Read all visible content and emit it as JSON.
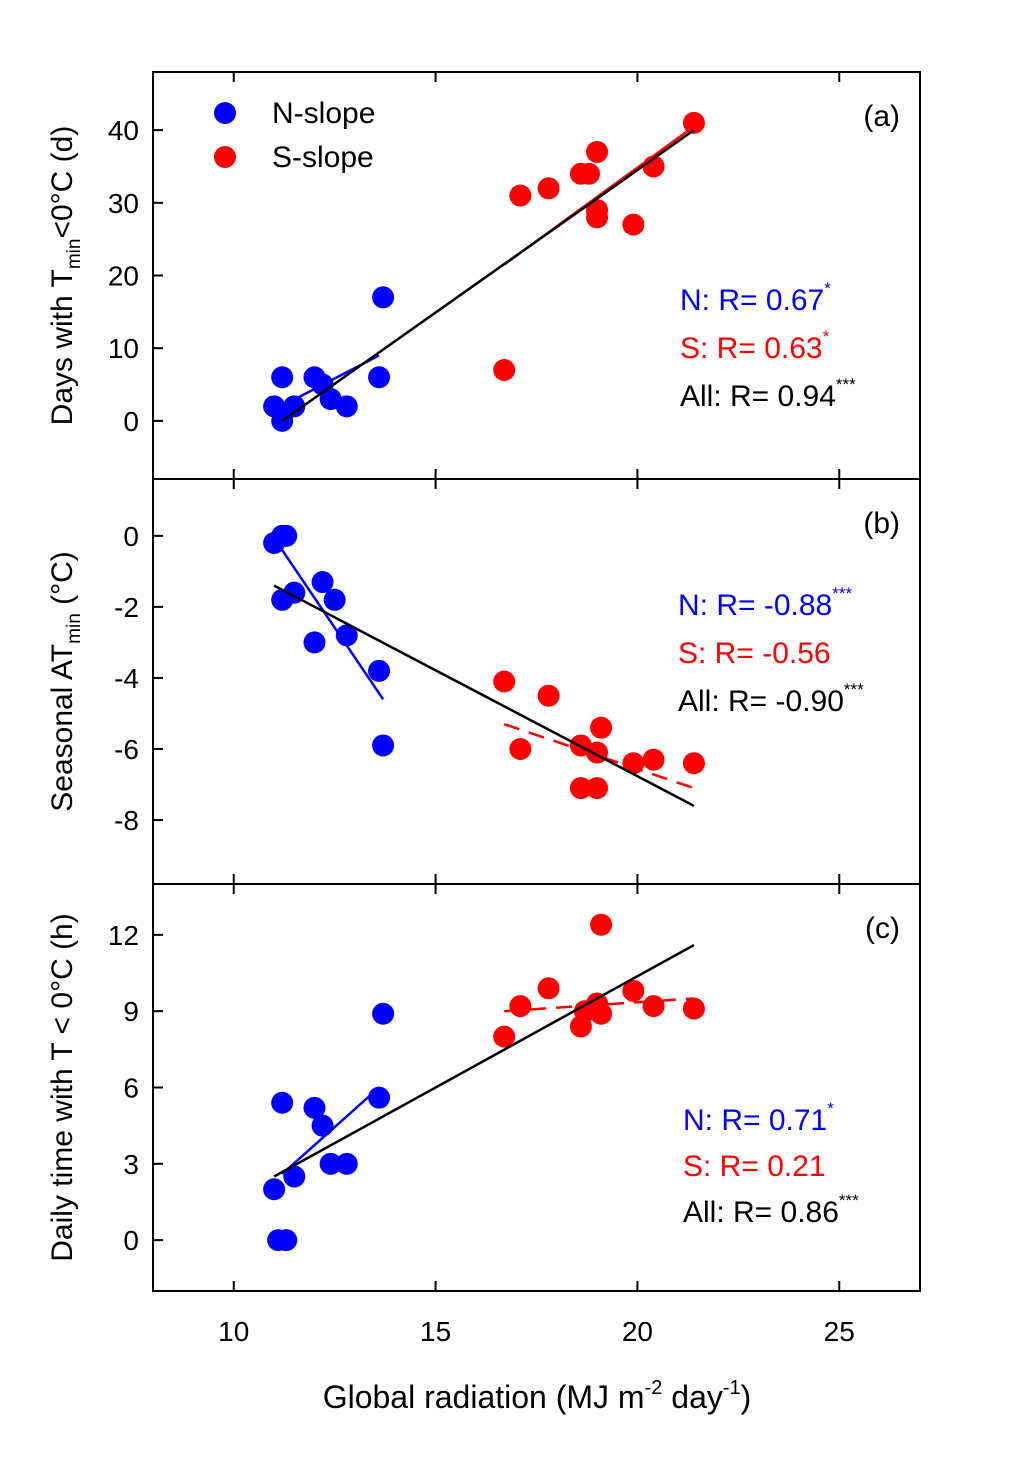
{
  "chart_data": {
    "type": "scatter",
    "xlabel": {
      "main": "Global radiation (MJ m",
      "sup1": "-2",
      "mid": " day",
      "sup2": "-1",
      "end": ")"
    },
    "xlim": [
      8,
      27
    ],
    "xticks": [
      10,
      15,
      20,
      25
    ],
    "legend": {
      "position": "top-left",
      "entries": [
        {
          "name": "N-slope",
          "color": "#0000ff"
        },
        {
          "name": "S-slope",
          "color": "#ff0000"
        }
      ]
    },
    "colors": {
      "n": "#0000ff",
      "s": "#ff0000",
      "all": "#000000"
    },
    "panels": [
      {
        "id": "a",
        "label": "(a)",
        "ylabel": {
          "pre": "Days with T",
          "sub": "min",
          "post": "<0°C (d)"
        },
        "ylim": [
          -8,
          48
        ],
        "yticks": [
          0,
          10,
          20,
          30,
          40
        ],
        "n_points": [
          [
            11.0,
            2
          ],
          [
            11.2,
            0
          ],
          [
            11.2,
            6
          ],
          [
            11.5,
            2
          ],
          [
            12.0,
            6
          ],
          [
            12.2,
            5
          ],
          [
            12.4,
            3
          ],
          [
            12.8,
            2
          ],
          [
            13.6,
            6
          ],
          [
            13.7,
            17
          ]
        ],
        "s_points": [
          [
            16.7,
            7
          ],
          [
            17.1,
            31
          ],
          [
            17.8,
            32
          ],
          [
            18.6,
            34
          ],
          [
            18.8,
            34
          ],
          [
            19.0,
            29
          ],
          [
            19.0,
            28
          ],
          [
            19.0,
            37
          ],
          [
            19.9,
            27
          ],
          [
            20.4,
            35
          ],
          [
            21.4,
            41
          ]
        ],
        "n_fit": [
          [
            11.0,
            1.5
          ],
          [
            13.6,
            9.0
          ]
        ],
        "s_fit": [
          [
            16.7,
            21.5
          ],
          [
            21.4,
            40.5
          ]
        ],
        "all_fit": [
          [
            11.2,
            0
          ],
          [
            21.4,
            40
          ]
        ],
        "s_fit_dashed": false,
        "stats": [
          {
            "text": "N: R= 0.67",
            "sig": "*",
            "color": "#0000ff"
          },
          {
            "text": "S: R= 0.63",
            "sig": "*",
            "color": "#ff0000"
          },
          {
            "text": "All: R= 0.94",
            "sig": "***",
            "color": "#000000"
          }
        ]
      },
      {
        "id": "b",
        "label": "(b)",
        "ylabel": {
          "pre": "Seasonal AT",
          "sub": "min",
          "post": " (°C)"
        },
        "ylim": [
          -9.8,
          1.6
        ],
        "yticks": [
          0,
          -2,
          -4,
          -6,
          -8
        ],
        "n_points": [
          [
            11.0,
            -0.2
          ],
          [
            11.2,
            0.0
          ],
          [
            11.3,
            0.0
          ],
          [
            11.2,
            -1.8
          ],
          [
            11.5,
            -1.6
          ],
          [
            12.0,
            -3.0
          ],
          [
            12.2,
            -1.3
          ],
          [
            12.5,
            -1.8
          ],
          [
            12.8,
            -2.8
          ],
          [
            13.6,
            -3.8
          ],
          [
            13.7,
            -5.9
          ]
        ],
        "s_points": [
          [
            16.7,
            -4.1
          ],
          [
            17.1,
            -6.0
          ],
          [
            17.8,
            -4.5
          ],
          [
            18.6,
            -5.9
          ],
          [
            18.6,
            -7.1
          ],
          [
            19.0,
            -6.1
          ],
          [
            19.0,
            -7.1
          ],
          [
            19.1,
            -5.4
          ],
          [
            19.9,
            -6.4
          ],
          [
            20.4,
            -6.3
          ],
          [
            21.4,
            -6.4
          ]
        ],
        "n_fit": [
          [
            11.2,
            -0.4
          ],
          [
            13.7,
            -4.6
          ]
        ],
        "s_fit": [
          [
            16.7,
            -5.3
          ],
          [
            21.4,
            -7.1
          ]
        ],
        "all_fit": [
          [
            11.0,
            -1.4
          ],
          [
            21.4,
            -7.6
          ]
        ],
        "s_fit_dashed": true,
        "stats": [
          {
            "text": "N: R= -0.88",
            "sig": "***",
            "color": "#0000ff"
          },
          {
            "text": "S: R= -0.56",
            "sig": "",
            "color": "#ff0000"
          },
          {
            "text": "All: R= -0.90",
            "sig": "***",
            "color": "#000000"
          }
        ]
      },
      {
        "id": "c",
        "label": "(c)",
        "ylabel": {
          "pre": "Daily time with T < 0°C (h)",
          "sub": "",
          "post": ""
        },
        "ylim": [
          -2,
          14
        ],
        "yticks": [
          0,
          3,
          6,
          9,
          12
        ],
        "n_points": [
          [
            11.0,
            2.0
          ],
          [
            11.1,
            0.0
          ],
          [
            11.3,
            0.0
          ],
          [
            11.2,
            5.4
          ],
          [
            11.5,
            2.5
          ],
          [
            12.0,
            5.2
          ],
          [
            12.2,
            4.5
          ],
          [
            12.4,
            3.0
          ],
          [
            12.8,
            3.0
          ],
          [
            13.6,
            5.6
          ],
          [
            13.7,
            8.9
          ]
        ],
        "s_points": [
          [
            16.7,
            8.0
          ],
          [
            17.1,
            9.2
          ],
          [
            17.8,
            9.9
          ],
          [
            18.6,
            8.4
          ],
          [
            18.7,
            9.0
          ],
          [
            19.0,
            9.3
          ],
          [
            19.1,
            8.9
          ],
          [
            19.1,
            12.4
          ],
          [
            19.9,
            9.8
          ],
          [
            20.4,
            9.2
          ],
          [
            21.4,
            9.1
          ]
        ],
        "n_fit": [
          [
            11.2,
            2.6
          ],
          [
            13.6,
            6.0
          ]
        ],
        "s_fit": [
          [
            16.7,
            9.0
          ],
          [
            21.4,
            9.5
          ]
        ],
        "all_fit": [
          [
            11.0,
            2.5
          ],
          [
            21.4,
            11.6
          ]
        ],
        "s_fit_dashed": true,
        "stats": [
          {
            "text": "N: R= 0.71",
            "sig": "*",
            "color": "#0000ff"
          },
          {
            "text": "S: R= 0.21",
            "sig": "",
            "color": "#ff0000"
          },
          {
            "text": "All: R= 0.86",
            "sig": "***",
            "color": "#000000"
          }
        ]
      }
    ]
  }
}
